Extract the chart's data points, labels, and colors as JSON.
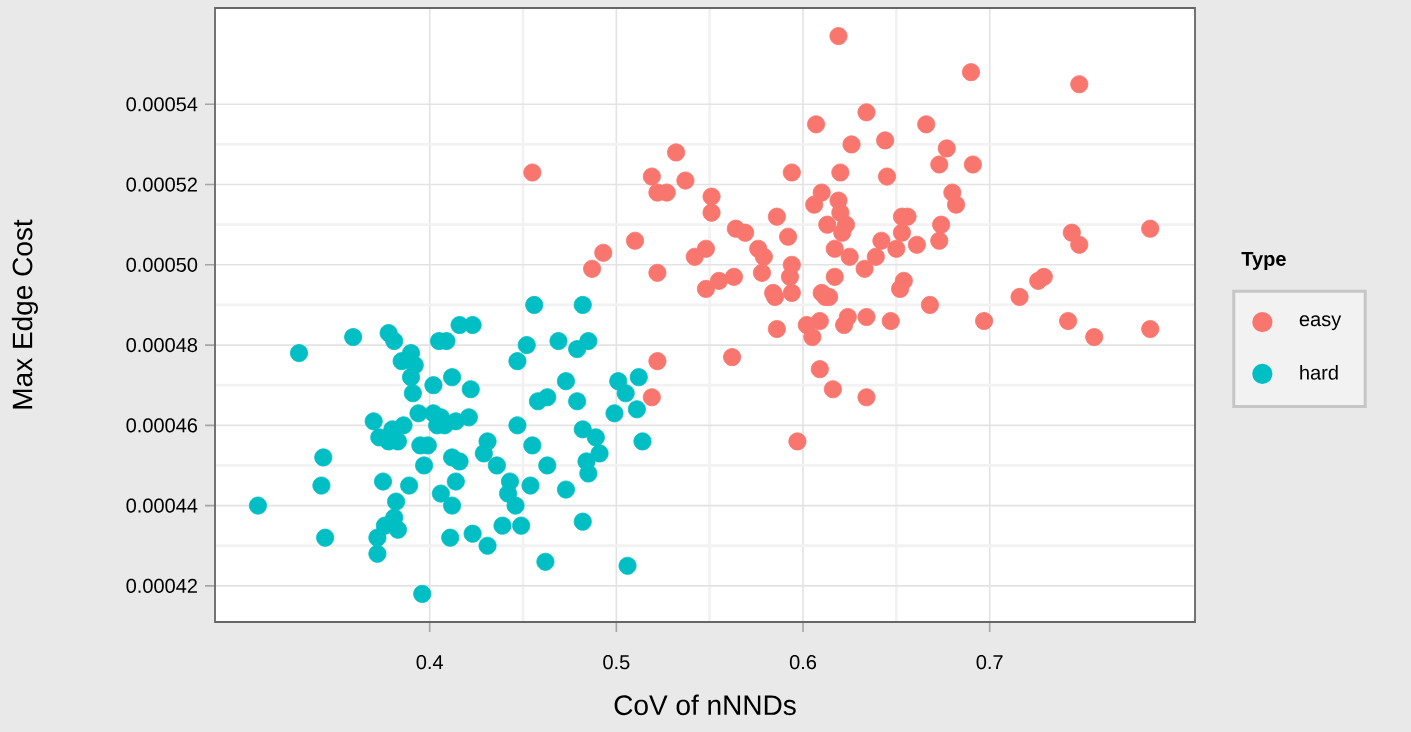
{
  "chart_data": {
    "type": "scatter",
    "xlabel": "CoV of nNNDs",
    "ylabel": "Max Edge Cost",
    "legend_title": "Type",
    "legend": "right",
    "marker": "circle",
    "grid": true,
    "xlim": [
      0.285,
      0.81
    ],
    "ylim": [
      0.000411,
      0.000564
    ],
    "xticks": [
      0.4,
      0.5,
      0.6,
      0.7
    ],
    "yticks": [
      0.00042,
      0.00044,
      0.00046,
      0.00048,
      {
        "value": 0.0005,
        "label": "0.00050"
      },
      0.00052,
      0.00054
    ],
    "series": [
      {
        "name": "easy",
        "color": "#f8766d",
        "x": [
          0.619,
          0.69,
          0.748,
          0.634,
          0.607,
          0.666,
          0.532,
          0.644,
          0.626,
          0.677,
          0.594,
          0.455,
          0.519,
          0.522,
          0.527,
          0.537,
          0.551,
          0.551,
          0.61,
          0.606,
          0.62,
          0.645,
          0.673,
          0.691,
          0.68,
          0.682,
          0.619,
          0.62,
          0.623,
          0.621,
          0.653,
          0.656,
          0.653,
          0.642,
          0.65,
          0.661,
          0.674,
          0.673,
          0.617,
          0.625,
          0.639,
          0.633,
          0.617,
          0.654,
          0.652,
          0.614,
          0.668,
          0.624,
          0.622,
          0.634,
          0.647,
          0.697,
          0.744,
          0.748,
          0.786,
          0.729,
          0.726,
          0.716,
          0.742,
          0.756,
          0.786,
          0.616,
          0.634,
          0.586,
          0.592,
          0.564,
          0.569,
          0.613,
          0.576,
          0.579,
          0.578,
          0.594,
          0.593,
          0.594,
          0.584,
          0.585,
          0.61,
          0.612,
          0.51,
          0.493,
          0.487,
          0.522,
          0.542,
          0.548,
          0.548,
          0.555,
          0.563,
          0.586,
          0.602,
          0.609,
          0.605,
          0.562,
          0.609,
          0.522,
          0.519,
          0.597
        ],
        "values": [
          0.000557,
          0.000548,
          0.000545,
          0.000538,
          0.000535,
          0.000535,
          0.000528,
          0.000531,
          0.00053,
          0.000529,
          0.000523,
          0.000523,
          0.000522,
          0.000518,
          0.000518,
          0.000521,
          0.000517,
          0.000513,
          0.000518,
          0.000515,
          0.000523,
          0.000522,
          0.000525,
          0.000525,
          0.000518,
          0.000515,
          0.000516,
          0.000513,
          0.00051,
          0.000508,
          0.000512,
          0.000512,
          0.000508,
          0.000506,
          0.000504,
          0.000505,
          0.00051,
          0.000506,
          0.000504,
          0.000502,
          0.000502,
          0.000499,
          0.000497,
          0.000496,
          0.000494,
          0.000492,
          0.00049,
          0.000487,
          0.000485,
          0.000487,
          0.000486,
          0.000486,
          0.000508,
          0.000505,
          0.000509,
          0.000497,
          0.000496,
          0.000492,
          0.000486,
          0.000482,
          0.000484,
          0.000469,
          0.000467,
          0.000512,
          0.000507,
          0.000509,
          0.000508,
          0.00051,
          0.000504,
          0.000502,
          0.000498,
          0.0005,
          0.000497,
          0.000493,
          0.000493,
          0.000492,
          0.000493,
          0.000492,
          0.000506,
          0.000503,
          0.000499,
          0.000498,
          0.000502,
          0.000504,
          0.000494,
          0.000496,
          0.000497,
          0.000484,
          0.000485,
          0.000486,
          0.000482,
          0.000477,
          0.000474,
          0.000476,
          0.000467,
          0.000456
        ]
      },
      {
        "name": "hard",
        "color": "#00bfc4",
        "x": [
          0.33,
          0.359,
          0.378,
          0.381,
          0.39,
          0.385,
          0.392,
          0.39,
          0.391,
          0.402,
          0.412,
          0.405,
          0.409,
          0.416,
          0.423,
          0.422,
          0.394,
          0.402,
          0.406,
          0.404,
          0.408,
          0.414,
          0.421,
          0.37,
          0.373,
          0.378,
          0.383,
          0.386,
          0.38,
          0.395,
          0.399,
          0.397,
          0.412,
          0.416,
          0.343,
          0.342,
          0.308,
          0.344,
          0.375,
          0.389,
          0.406,
          0.412,
          0.414,
          0.382,
          0.381,
          0.383,
          0.376,
          0.372,
          0.372,
          0.411,
          0.423,
          0.396,
          0.456,
          0.482,
          0.452,
          0.447,
          0.469,
          0.479,
          0.485,
          0.473,
          0.458,
          0.463,
          0.479,
          0.501,
          0.512,
          0.505,
          0.511,
          0.499,
          0.514,
          0.447,
          0.455,
          0.463,
          0.482,
          0.489,
          0.491,
          0.484,
          0.485,
          0.431,
          0.429,
          0.436,
          0.443,
          0.442,
          0.446,
          0.454,
          0.473,
          0.439,
          0.449,
          0.482,
          0.431,
          0.462,
          0.506
        ],
        "values": [
          0.000478,
          0.000482,
          0.000483,
          0.000481,
          0.000478,
          0.000476,
          0.000475,
          0.000472,
          0.000468,
          0.00047,
          0.000472,
          0.000481,
          0.000481,
          0.000485,
          0.000485,
          0.000469,
          0.000463,
          0.000463,
          0.000462,
          0.00046,
          0.00046,
          0.000461,
          0.000462,
          0.000461,
          0.000457,
          0.000456,
          0.000456,
          0.00046,
          0.000459,
          0.000455,
          0.000455,
          0.00045,
          0.000452,
          0.000451,
          0.000452,
          0.000445,
          0.00044,
          0.000432,
          0.000446,
          0.000445,
          0.000443,
          0.00044,
          0.000446,
          0.000441,
          0.000437,
          0.000434,
          0.000435,
          0.000432,
          0.000428,
          0.000432,
          0.000433,
          0.000418,
          0.00049,
          0.00049,
          0.00048,
          0.000476,
          0.000481,
          0.000479,
          0.000481,
          0.000471,
          0.000466,
          0.000467,
          0.000466,
          0.000471,
          0.000472,
          0.000468,
          0.000464,
          0.000463,
          0.000456,
          0.00046,
          0.000455,
          0.00045,
          0.000459,
          0.000457,
          0.000453,
          0.000451,
          0.000448,
          0.000456,
          0.000453,
          0.00045,
          0.000446,
          0.000443,
          0.00044,
          0.000445,
          0.000444,
          0.000435,
          0.000435,
          0.000436,
          0.00043,
          0.000426,
          0.000425
        ]
      }
    ]
  }
}
